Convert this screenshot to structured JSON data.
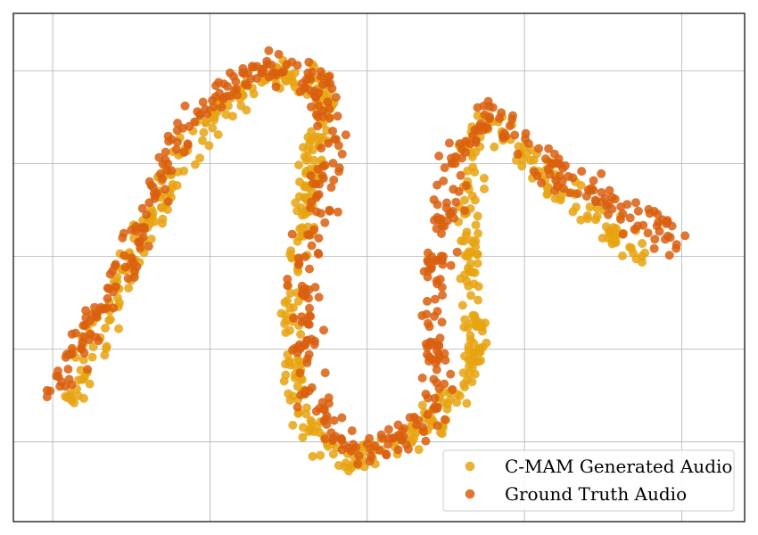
{
  "chart_data": {
    "type": "scatter",
    "title": "",
    "xlabel": "",
    "ylabel": "",
    "xlim": [
      -10,
      36.5
    ],
    "ylim": [
      -14.3,
      13.1
    ],
    "xticks": [
      -7.5,
      2.5,
      12.5,
      22.5,
      32.5
    ],
    "yticks": [
      -10,
      -5,
      0,
      5,
      10
    ],
    "grid": true,
    "legend_position": "bottom-right",
    "series": [
      {
        "name": "C-MAM Generated Audio",
        "color": "#E8A311",
        "path": [
          [
            -6.5,
            -7.8
          ],
          [
            -2.5,
            0
          ],
          [
            0.5,
            5
          ],
          [
            4,
            8.5
          ],
          [
            7.5,
            10
          ],
          [
            10,
            9
          ],
          [
            9,
            5
          ],
          [
            8,
            0
          ],
          [
            7.5,
            -5
          ],
          [
            9,
            -10
          ],
          [
            12,
            -11
          ],
          [
            15,
            -10
          ],
          [
            18,
            -8
          ],
          [
            19.5,
            -5
          ],
          [
            19,
            0
          ],
          [
            19,
            5
          ],
          [
            20,
            7.8
          ],
          [
            24,
            4
          ],
          [
            27,
            2
          ],
          [
            30,
            0
          ]
        ],
        "point_count": 620,
        "spread": 0.9
      },
      {
        "name": "Ground Truth Audio",
        "color": "#D95F0E",
        "path": [
          [
            -7.9,
            -8
          ],
          [
            -5.5,
            -4.5
          ],
          [
            -3,
            -1
          ],
          [
            -1,
            3.5
          ],
          [
            1,
            7
          ],
          [
            4,
            9.5
          ],
          [
            6.5,
            10.5
          ],
          [
            9.5,
            9.5
          ],
          [
            10.5,
            6
          ],
          [
            9.5,
            3
          ],
          [
            8.5,
            -2
          ],
          [
            9,
            -7.5
          ],
          [
            11.5,
            -10.5
          ],
          [
            14.5,
            -10
          ],
          [
            17,
            -8
          ],
          [
            16.5,
            -4
          ],
          [
            17,
            0
          ],
          [
            18,
            5
          ],
          [
            20,
            7.8
          ],
          [
            24,
            5
          ],
          [
            28,
            3
          ],
          [
            32.5,
            0.8
          ]
        ],
        "point_count": 580,
        "spread": 1.05
      }
    ]
  }
}
